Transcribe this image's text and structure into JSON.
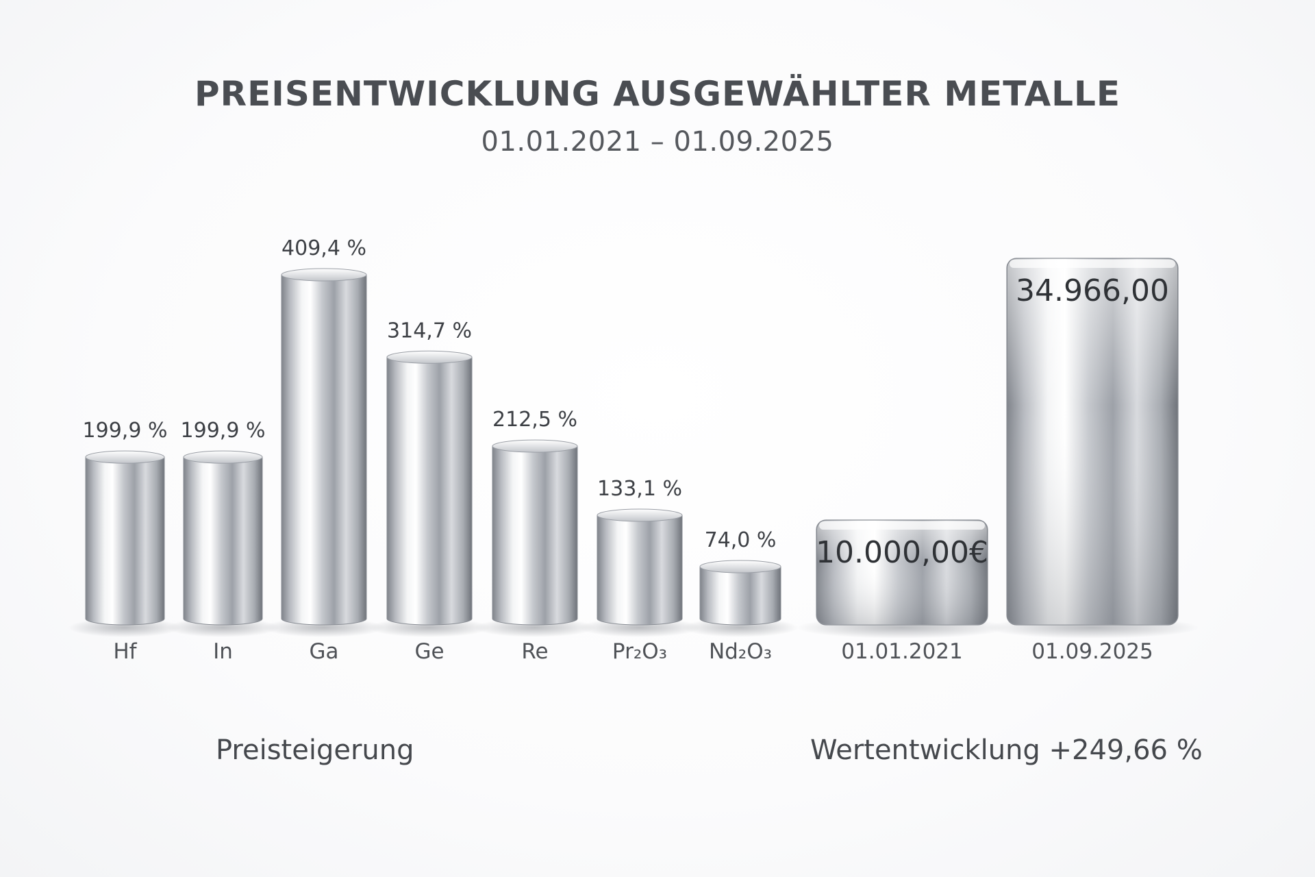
{
  "header": {
    "title": "PREISENTWICKLUNG AUSGEWÄHLTER METALLE",
    "subtitle": "01.01.2021 – 01.09.2025"
  },
  "footer": {
    "left_label": "Preisteigerung",
    "right_label": "Wertentwicklung +249,66 %"
  },
  "chart_data": [
    {
      "type": "bar",
      "title": "",
      "categories": [
        "Hf",
        "In",
        "Ga",
        "Ge",
        "Re",
        "Pr₂O₃",
        "Nd₂O₃"
      ],
      "values": [
        199.9,
        199.9,
        409.4,
        314.7,
        212.5,
        133.1,
        74.0
      ],
      "value_labels": [
        "199,9 %",
        "199,9 %",
        "409,4 %",
        "314,7 %",
        "212,5 %",
        "133,1 %",
        "74,0 %"
      ],
      "ylim": [
        0,
        409.4
      ],
      "grid": false,
      "legend": "none",
      "caption": "Preisteigerung"
    },
    {
      "type": "bar",
      "title": "",
      "categories": [
        "01.01.2021",
        "01.09.2025"
      ],
      "values": [
        10000.0,
        34966.0
      ],
      "value_labels": [
        "10.000,00€",
        "34.966,00"
      ],
      "ylim": [
        0,
        34966
      ],
      "grid": false,
      "legend": "none",
      "caption": "Wertentwicklung +249,66 %"
    }
  ],
  "colors": {
    "metal_dark": "#8e9299",
    "metal_mid": "#c9ccd1",
    "metal_light": "#f7f8f9",
    "label_text": "#3d4045",
    "category_text": "#4f5257"
  }
}
